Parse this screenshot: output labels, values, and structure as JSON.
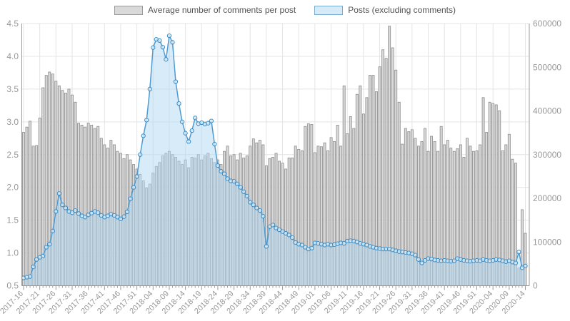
{
  "legend": {
    "items": [
      {
        "label": "Average number of comments per post",
        "swatch": "gray-bar"
      },
      {
        "label": "Posts (excluding comments)",
        "swatch": "blue-area"
      }
    ]
  },
  "colors": {
    "bar_fill": "#d9d9d9",
    "bar_stroke": "#8c8c8c",
    "area_fill": "rgba(176,216,243,0.5)",
    "line": "#4f9bd1",
    "marker_stroke": "#3e8ec7",
    "marker_fill": "rgba(235,246,253,0.7)",
    "grid": "#e4e4e4",
    "axis": "#9a9a9a",
    "tick_label": "#999999"
  },
  "chart_data": {
    "type": "bar",
    "subtype": "combo-bar-plus-area-line",
    "title": "",
    "xlabel": "",
    "ylabel_left": "",
    "ylabel_right": "",
    "grid": true,
    "legend_position": "top-center",
    "x_tick_every": 5,
    "left_axis": {
      "min": 0.5,
      "max": 4.5,
      "ticks": [
        "0.5",
        "1.0",
        "1.5",
        "2.0",
        "2.5",
        "3.0",
        "3.5",
        "4.0",
        "4.5"
      ]
    },
    "right_axis": {
      "min": 0,
      "max": 600000,
      "ticks": [
        "0",
        "100000",
        "200000",
        "300000",
        "400000",
        "500000",
        "600000"
      ]
    },
    "categories": [
      "2017-16",
      "2017-17",
      "2017-18",
      "2017-19",
      "2017-20",
      "2017-21",
      "2017-22",
      "2017-23",
      "2017-24",
      "2017-25",
      "2017-26",
      "2017-27",
      "2017-28",
      "2017-29",
      "2017-30",
      "2017-31",
      "2017-32",
      "2017-33",
      "2017-34",
      "2017-35",
      "2017-36",
      "2017-37",
      "2017-38",
      "2017-39",
      "2017-40",
      "2017-41",
      "2017-42",
      "2017-43",
      "2017-44",
      "2017-45",
      "2017-46",
      "2017-47",
      "2017-48",
      "2017-49",
      "2017-50",
      "2017-51",
      "2017-52",
      "2018-01",
      "2018-02",
      "2018-03",
      "2018-04",
      "2018-05",
      "2018-06",
      "2018-07",
      "2018-08",
      "2018-09",
      "2018-10",
      "2018-11",
      "2018-12",
      "2018-13",
      "2018-14",
      "2018-15",
      "2018-16",
      "2018-17",
      "2018-18",
      "2018-19",
      "2018-20",
      "2018-21",
      "2018-22",
      "2018-23",
      "2018-24",
      "2018-25",
      "2018-26",
      "2018-27",
      "2018-28",
      "2018-29",
      "2018-30",
      "2018-31",
      "2018-32",
      "2018-33",
      "2018-34",
      "2018-35",
      "2018-36",
      "2018-37",
      "2018-38",
      "2018-39",
      "2018-40",
      "2018-41",
      "2018-42",
      "2018-43",
      "2018-44",
      "2018-45",
      "2018-46",
      "2018-47",
      "2018-48",
      "2018-49",
      "2018-50",
      "2018-51",
      "2018-52",
      "2018-53",
      "2019-01",
      "2019-02",
      "2019-03",
      "2019-04",
      "2019-05",
      "2019-06",
      "2019-07",
      "2019-08",
      "2019-09",
      "2019-10",
      "2019-11",
      "2019-12",
      "2019-13",
      "2019-14",
      "2019-15",
      "2019-16",
      "2019-17",
      "2019-18",
      "2019-19",
      "2019-20",
      "2019-21",
      "2019-22",
      "2019-23",
      "2019-24",
      "2019-25",
      "2019-26",
      "2019-27",
      "2019-28",
      "2019-29",
      "2019-30",
      "2019-31",
      "2019-32",
      "2019-33",
      "2019-34",
      "2019-35",
      "2019-36",
      "2019-37",
      "2019-38",
      "2019-39",
      "2019-40",
      "2019-41",
      "2019-42",
      "2019-43",
      "2019-44",
      "2019-45",
      "2019-46",
      "2019-47",
      "2019-48",
      "2019-49",
      "2019-50",
      "2019-51",
      "2019-52",
      "2020-01",
      "2020-02",
      "2020-03",
      "2020-04",
      "2020-05",
      "2020-06",
      "2020-07",
      "2020-08",
      "2020-09",
      "2020-10",
      "2020-11",
      "2020-12",
      "2020-13",
      "2020-14"
    ],
    "series": [
      {
        "name": "Average number of comments per post",
        "type": "bar",
        "axis": "left",
        "values": [
          2.84,
          2.92,
          3.01,
          2.63,
          2.64,
          3.06,
          3.52,
          3.71,
          3.76,
          3.73,
          3.62,
          3.55,
          3.48,
          3.44,
          3.5,
          3.41,
          3.3,
          2.98,
          2.95,
          2.92,
          2.98,
          2.95,
          2.9,
          2.93,
          2.75,
          2.65,
          2.6,
          2.72,
          2.65,
          2.55,
          2.52,
          2.44,
          2.5,
          2.42,
          2.35,
          2.28,
          2.2,
          2.1,
          1.99,
          2.05,
          2.22,
          2.32,
          2.38,
          2.48,
          2.52,
          2.55,
          2.5,
          2.46,
          2.4,
          2.35,
          2.42,
          2.3,
          2.46,
          2.45,
          2.5,
          2.42,
          2.48,
          2.52,
          2.44,
          2.38,
          2.42,
          2.35,
          2.55,
          2.63,
          2.48,
          2.5,
          2.42,
          2.52,
          2.45,
          2.48,
          2.63,
          2.74,
          2.68,
          2.72,
          2.65,
          2.33,
          2.44,
          2.46,
          2.52,
          2.4,
          2.37,
          2.28,
          2.45,
          2.45,
          2.63,
          2.58,
          2.56,
          2.93,
          2.97,
          2.96,
          2.53,
          2.63,
          2.62,
          2.68,
          2.56,
          2.76,
          2.7,
          2.95,
          2.63,
          3.55,
          2.82,
          3.08,
          2.9,
          3.42,
          3.55,
          3.12,
          3.37,
          3.71,
          3.71,
          3.46,
          3.84,
          4.1,
          3.97,
          4.46,
          4.13,
          3.79,
          3.3,
          2.66,
          2.9,
          2.85,
          2.88,
          2.75,
          2.63,
          2.7,
          2.9,
          2.55,
          2.78,
          2.7,
          2.55,
          2.93,
          2.65,
          2.72,
          2.6,
          2.55,
          2.59,
          2.65,
          2.46,
          2.75,
          2.63,
          2.55,
          2.56,
          2.65,
          3.37,
          2.84,
          3.3,
          3.28,
          3.26,
          3.17,
          2.56,
          2.65,
          2.81,
          2.43,
          2.37,
          0.77,
          1.66,
          1.3
        ]
      },
      {
        "name": "Posts (excluding comments)",
        "type": "area-line-markers",
        "axis": "right",
        "values": [
          18000,
          19500,
          21000,
          43000,
          60000,
          65000,
          68000,
          88000,
          95000,
          125000,
          170000,
          211000,
          185000,
          178000,
          170000,
          167000,
          172000,
          165000,
          160000,
          157000,
          162000,
          166000,
          170000,
          167000,
          161000,
          157000,
          160000,
          164000,
          161000,
          157000,
          153000,
          158000,
          169000,
          199000,
          225000,
          250000,
          300000,
          343000,
          379000,
          450000,
          545000,
          564000,
          561000,
          546000,
          518000,
          572000,
          557000,
          467000,
          417000,
          375000,
          349000,
          330000,
          355000,
          384000,
          371000,
          373000,
          370000,
          372000,
          377000,
          324000,
          275000,
          262000,
          256000,
          245000,
          240000,
          239000,
          233000,
          225000,
          215000,
          205000,
          191000,
          185000,
          178000,
          172000,
          159000,
          90000,
          135000,
          139000,
          132000,
          128000,
          124000,
          120000,
          116000,
          110000,
          99000,
          95000,
          93000,
          88000,
          84000,
          86000,
          98000,
          97000,
          95000,
          93000,
          95000,
          93000,
          94000,
          96000,
          98000,
          97000,
          102000,
          103000,
          102000,
          100000,
          97000,
          95000,
          93000,
          90000,
          88000,
          86000,
          85000,
          84000,
          84000,
          84000,
          82000,
          80000,
          78000,
          77000,
          76000,
          75000,
          73000,
          70000,
          60000,
          52000,
          58000,
          62000,
          61000,
          59000,
          58000,
          57000,
          58000,
          57000,
          56000,
          57000,
          62000,
          60000,
          58000,
          57000,
          56000,
          57000,
          58000,
          57000,
          60000,
          58000,
          57000,
          58000,
          60000,
          59000,
          57000,
          55000,
          57000,
          54000,
          52000,
          77000,
          41000,
          45000
        ]
      }
    ]
  }
}
